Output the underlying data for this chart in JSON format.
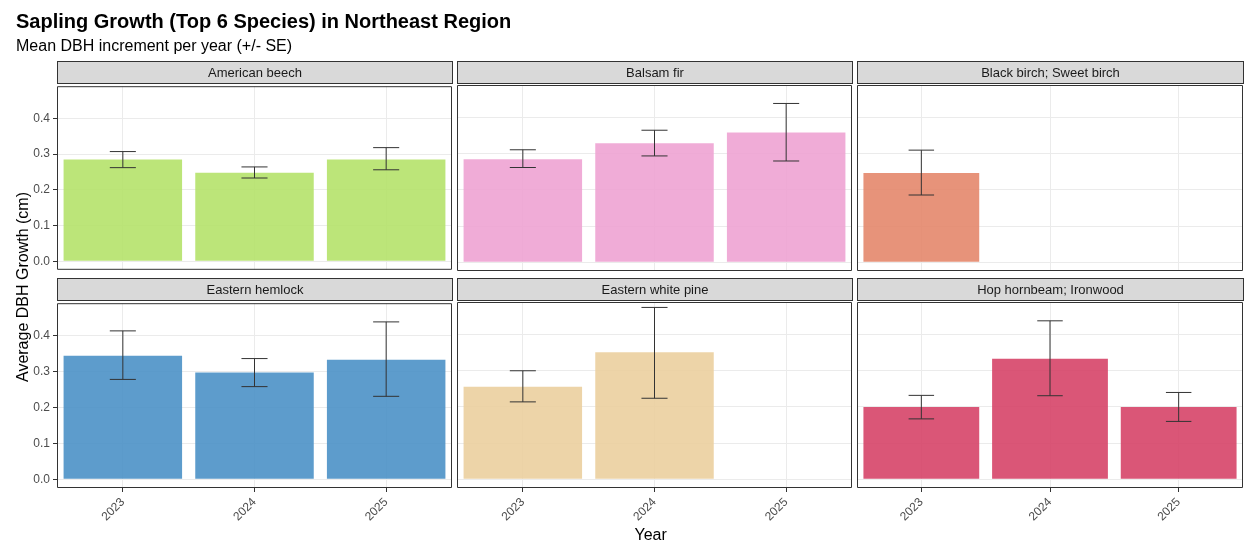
{
  "chart_data": [
    {
      "type": "bar",
      "title": "American beech",
      "annotations": [
        "Sapling Growth (Top 6 Species) in Northeast Region",
        "Mean DBH increment per year (+/- SE)"
      ],
      "ylabel": "Average DBH Growth (cm)",
      "categories": [
        "2023",
        "2024",
        "2025"
      ],
      "values": [
        0.285,
        0.248,
        0.285
      ],
      "errors": [
        [
          0.262,
          0.307
        ],
        [
          0.233,
          0.264
        ],
        [
          0.256,
          0.318
        ]
      ],
      "color": "#b5e26a",
      "ylim": [
        -0.024,
        0.49
      ],
      "yticks": [
        {
          "value": 0,
          "label": "0.0"
        },
        0.1,
        0.2,
        0.3,
        0.4
      ],
      "grid": true,
      "tick_labels": "y"
    },
    {
      "type": "bar",
      "title": "Balsam fir",
      "categories": [
        "2023",
        "2024",
        "2025"
      ],
      "values": [
        0.285,
        0.329,
        0.359
      ],
      "errors": [
        [
          0.262,
          0.311
        ],
        [
          0.294,
          0.365
        ],
        [
          0.28,
          0.439
        ]
      ],
      "color": "#eea3d3",
      "ylim": [
        -0.024,
        0.49
      ],
      "yticks": [
        0,
        0.1,
        0.2,
        0.3,
        0.4
      ],
      "grid": true,
      "tick_labels": false
    },
    {
      "type": "bar",
      "title": "Black birch; Sweet birch",
      "categories": [
        "2023",
        "2024",
        "2025"
      ],
      "values": [
        0.247,
        null,
        null
      ],
      "errors": [
        [
          0.186,
          0.31
        ],
        null,
        null
      ],
      "color": "#e4876b",
      "ylim": [
        -0.024,
        0.49
      ],
      "yticks": [
        0,
        0.1,
        0.2,
        0.3,
        0.4
      ],
      "grid": true,
      "tick_labels": false
    },
    {
      "type": "bar",
      "title": "Eastern hemlock",
      "categories": [
        "2023",
        "2024",
        "2025"
      ],
      "values": [
        0.344,
        0.297,
        0.333
      ],
      "errors": [
        [
          0.278,
          0.413
        ],
        [
          0.258,
          0.336
        ],
        [
          0.231,
          0.438
        ]
      ],
      "color": "#4b91c7",
      "ylim": [
        -0.024,
        0.49
      ],
      "yticks": [
        {
          "value": 0,
          "label": "0.0"
        },
        0.1,
        0.2,
        0.3,
        0.4
      ],
      "grid": true
    },
    {
      "type": "bar",
      "title": "Eastern white pine",
      "xlabel": "Year",
      "categories": [
        "2023",
        "2024",
        "2025"
      ],
      "values": [
        0.256,
        0.351,
        null
      ],
      "errors": [
        [
          0.214,
          0.3
        ],
        [
          0.224,
          0.475
        ],
        null
      ],
      "color": "#ebcf9f",
      "ylim": [
        -0.024,
        0.49
      ],
      "yticks": [
        0,
        0.1,
        0.2,
        0.3,
        0.4
      ],
      "grid": true,
      "tick_labels": "x"
    },
    {
      "type": "bar",
      "title": "Hop hornbeam; Ironwood",
      "categories": [
        "2023",
        "2024",
        "2025"
      ],
      "values": [
        0.2,
        0.333,
        0.2
      ],
      "errors": [
        [
          0.167,
          0.232
        ],
        [
          0.231,
          0.438
        ],
        [
          0.16,
          0.24
        ]
      ],
      "color": "#d64468",
      "ylim": [
        -0.024,
        0.49
      ],
      "yticks": [
        0,
        0.1,
        0.2,
        0.3,
        0.4
      ],
      "grid": true,
      "tick_labels": "x"
    }
  ]
}
